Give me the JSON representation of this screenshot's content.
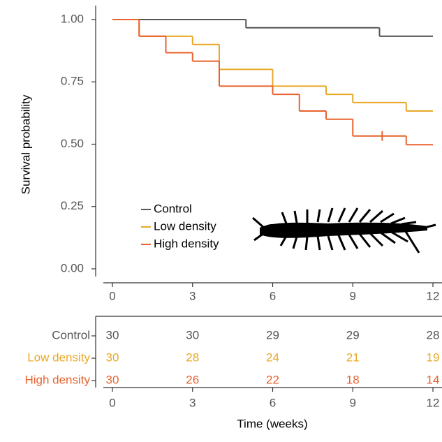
{
  "chart_data": {
    "type": "survival-step",
    "y_label": "Survival probability",
    "x_label": "Time (weeks)",
    "xlim": [
      0,
      12
    ],
    "xticks": [
      0,
      3,
      6,
      9,
      12
    ],
    "ylim": [
      0,
      1
    ],
    "yticks": [
      {
        "value": 0,
        "label": "0.00"
      },
      {
        "value": 0.25,
        "label": "0.25"
      },
      {
        "value": 0.5,
        "label": "0.50"
      },
      {
        "value": 0.75,
        "label": "0.75"
      },
      {
        "value": 1,
        "label": "1.00"
      }
    ],
    "risk_times": [
      0,
      3,
      6,
      9,
      12
    ],
    "series": [
      {
        "name": "Control",
        "color": "#555555",
        "x": [
          0,
          5,
          10
        ],
        "values": [
          1.0,
          0.967,
          0.933
        ],
        "censored_x": [],
        "censored_values": [],
        "at_risk": [
          30,
          30,
          29,
          29,
          28
        ]
      },
      {
        "name": "Low density",
        "color": "#e9a825",
        "x": [
          0,
          1,
          3,
          4,
          6,
          8,
          9,
          11
        ],
        "values": [
          1.0,
          0.933,
          0.9,
          0.8,
          0.733,
          0.7,
          0.667,
          0.633
        ],
        "censored_x": [],
        "censored_values": [],
        "at_risk": [
          30,
          28,
          24,
          21,
          19
        ]
      },
      {
        "name": "High density",
        "color": "#e8622d",
        "x": [
          0,
          1,
          2,
          3,
          4,
          6,
          7,
          8,
          9,
          11
        ],
        "values": [
          1.0,
          0.933,
          0.867,
          0.833,
          0.733,
          0.7,
          0.633,
          0.6,
          0.533,
          0.498
        ],
        "censored_x": [
          10.1
        ],
        "censored_values": [
          0.533
        ],
        "at_risk": [
          30,
          26,
          22,
          18,
          14
        ]
      }
    ]
  }
}
